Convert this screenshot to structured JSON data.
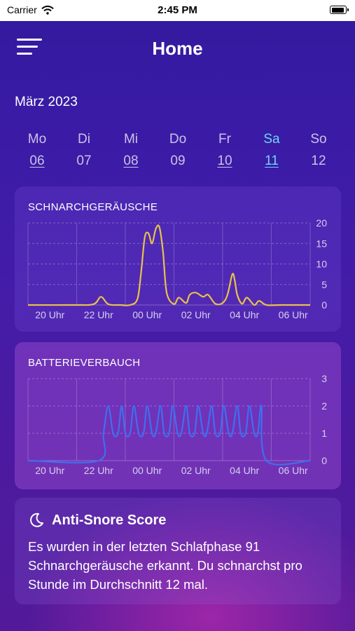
{
  "status": {
    "carrier": "Carrier",
    "time": "2:45 PM"
  },
  "nav": {
    "title": "Home"
  },
  "calendar": {
    "month": "März 2023",
    "days": [
      {
        "name": "Mo",
        "date": "06",
        "underlined": true,
        "selected": false
      },
      {
        "name": "Di",
        "date": "07",
        "underlined": false,
        "selected": false
      },
      {
        "name": "Mi",
        "date": "08",
        "underlined": true,
        "selected": false
      },
      {
        "name": "Do",
        "date": "09",
        "underlined": false,
        "selected": false
      },
      {
        "name": "Fr",
        "date": "10",
        "underlined": true,
        "selected": false
      },
      {
        "name": "Sa",
        "date": "11",
        "underlined": true,
        "selected": true
      },
      {
        "name": "So",
        "date": "12",
        "underlined": false,
        "selected": false
      }
    ]
  },
  "snore_card": {
    "title": "SCHNARCHGERÄUSCHE"
  },
  "battery_card": {
    "title": "BATTERIEVERBAUCH"
  },
  "score_card": {
    "title": "Anti-Snore Score",
    "icon": "moon-icon",
    "text": "Es wurden in der letzten Schlafphase 91 Schnarchgeräusche erkannt. Du schnarchst pro Stunde im Durchschnitt 12 mal."
  },
  "colors": {
    "snore_line": "#e8c24a",
    "battery_line": "#3f6ff0",
    "selected_day": "#6ed7f2"
  },
  "chart_data": [
    {
      "type": "line",
      "title": "SCHNARCHGERÄUSCHE",
      "x_ticks": [
        "20 Uhr",
        "22 Uhr",
        "00 Uhr",
        "02 Uhr",
        "04 Uhr",
        "06 Uhr"
      ],
      "y_ticks": [
        0,
        5,
        10,
        15,
        20
      ],
      "xlim": [
        19.6,
        31.2
      ],
      "ylim": [
        0,
        20
      ],
      "grid": true,
      "series": [
        {
          "x": [
            19.6,
            21.5,
            22.3,
            22.6,
            22.9,
            23.4,
            23.8,
            24.1,
            24.25,
            24.4,
            24.55,
            24.7,
            24.85,
            25.0,
            25.15,
            25.3,
            25.6,
            25.8,
            26.1,
            26.25,
            26.5,
            26.8,
            27.0,
            27.3,
            27.6,
            27.8,
            28.0,
            28.1,
            28.2,
            28.4,
            28.6,
            28.9,
            29.1,
            29.4,
            30.0,
            31.2
          ],
          "y": [
            0,
            0,
            0.2,
            2.0,
            0.2,
            0,
            0,
            1.5,
            8.0,
            16.5,
            17.5,
            15.0,
            18.5,
            19.0,
            13.0,
            3.0,
            0.2,
            1.8,
            0.5,
            2.5,
            3.0,
            2.0,
            2.5,
            0.3,
            0.5,
            2.5,
            7.5,
            6.0,
            2.5,
            0.3,
            1.8,
            0,
            1.0,
            0,
            0,
            0
          ]
        }
      ]
    },
    {
      "type": "line",
      "title": "BATTERIEVERBAUCH",
      "x_ticks": [
        "20 Uhr",
        "22 Uhr",
        "00 Uhr",
        "02 Uhr",
        "04 Uhr",
        "06 Uhr"
      ],
      "y_ticks": [
        0,
        1,
        2,
        3
      ],
      "xlim": [
        19.6,
        31.2
      ],
      "ylim": [
        0,
        3
      ],
      "grid": true,
      "series": [
        {
          "x": [
            19.6,
            22.5,
            22.7,
            22.9,
            23.1,
            23.3,
            23.45,
            23.6,
            23.8,
            23.95,
            24.15,
            24.35,
            24.5,
            24.7,
            24.85,
            25.05,
            25.2,
            25.4,
            25.55,
            25.75,
            25.9,
            26.1,
            26.25,
            26.45,
            26.6,
            26.8,
            26.95,
            27.15,
            27.3,
            27.5,
            27.65,
            27.85,
            28.0,
            28.2,
            28.35,
            28.55,
            28.7,
            28.9,
            29.05,
            29.2,
            29.4,
            31.2
          ],
          "y": [
            0,
            0,
            1.0,
            2.0,
            1.0,
            1.0,
            2.0,
            1.0,
            1.0,
            2.0,
            1.0,
            1.0,
            2.0,
            1.0,
            1.0,
            2.0,
            1.0,
            1.0,
            2.0,
            1.0,
            1.0,
            2.0,
            1.0,
            1.0,
            2.0,
            1.0,
            1.0,
            2.0,
            1.0,
            1.0,
            2.0,
            1.0,
            1.0,
            2.0,
            1.0,
            1.0,
            2.0,
            1.0,
            1.0,
            2.0,
            0,
            0
          ]
        }
      ]
    }
  ]
}
